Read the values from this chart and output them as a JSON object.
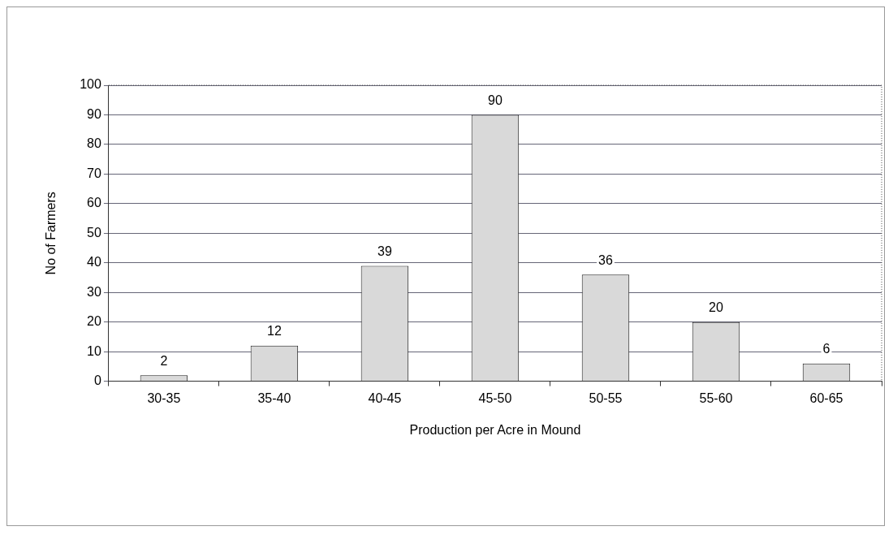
{
  "chart_data": {
    "type": "bar",
    "xlabel": "Production per Acre in Mound",
    "ylabel": "No of Farmers",
    "categories": [
      "30-35",
      "35-40",
      "40-45",
      "45-50",
      "50-55",
      "55-60",
      "60-65"
    ],
    "values": [
      2,
      12,
      39,
      90,
      36,
      20,
      6
    ],
    "color": "#d9d9d9",
    "ylim": [
      0,
      100
    ],
    "yticks": [
      0,
      10,
      20,
      30,
      40,
      50,
      60,
      70,
      80,
      90,
      100
    ],
    "grid": "y",
    "legend": false,
    "data_labels": true
  }
}
